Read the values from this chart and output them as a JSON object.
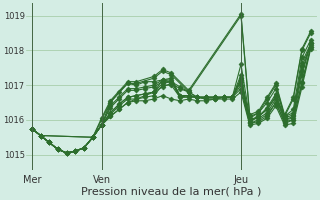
{
  "bg_color": "#d4ede4",
  "line_color": "#2d6e2d",
  "grid_color": "#a0c8a0",
  "xlabel": "Pression niveau de la mer( hPa )",
  "xlabel_fontsize": 8,
  "ylabel_ticks": [
    1015,
    1016,
    1017,
    1018,
    1019
  ],
  "ylim": [
    1014.55,
    1019.35
  ],
  "day_labels": [
    "Mer",
    "Ven",
    "Jeu"
  ],
  "day_positions": [
    0,
    48,
    144
  ],
  "xlim": [
    -4,
    196
  ],
  "vline_positions": [
    0,
    48,
    144
  ],
  "series": [
    [
      0,
      1015.75,
      6,
      1015.55,
      12,
      1015.35,
      18,
      1015.15,
      24,
      1015.05,
      30,
      1015.1,
      36,
      1015.2,
      42,
      1015.5,
      48,
      1015.85,
      54,
      1016.1,
      60,
      1016.3,
      66,
      1016.5,
      72,
      1016.6,
      78,
      1016.7,
      84,
      1016.8,
      90,
      1016.95,
      96,
      1017.05,
      102,
      1016.9,
      108,
      1016.8,
      114,
      1016.65,
      120,
      1016.6,
      126,
      1016.6,
      132,
      1016.65,
      138,
      1016.65,
      144,
      1016.9,
      150,
      1015.9,
      156,
      1015.95,
      162,
      1016.1,
      168,
      1016.5,
      174,
      1015.95,
      180,
      1016.0,
      186,
      1017.05,
      192,
      1018.1
    ],
    [
      0,
      1015.75,
      6,
      1015.55,
      12,
      1015.35,
      18,
      1015.15,
      24,
      1015.05,
      30,
      1015.1,
      36,
      1015.2,
      42,
      1015.5,
      48,
      1015.85,
      54,
      1016.2,
      60,
      1016.45,
      66,
      1016.65,
      72,
      1016.7,
      78,
      1016.75,
      84,
      1016.8,
      90,
      1017.05,
      96,
      1017.1,
      102,
      1016.95,
      108,
      1016.8,
      114,
      1016.65,
      120,
      1016.6,
      126,
      1016.6,
      132,
      1016.65,
      138,
      1016.65,
      144,
      1017.15,
      150,
      1016.0,
      156,
      1016.1,
      162,
      1016.3,
      168,
      1016.65,
      174,
      1016.1,
      180,
      1016.2,
      186,
      1017.4,
      192,
      1018.2
    ],
    [
      0,
      1015.75,
      6,
      1015.55,
      12,
      1015.35,
      18,
      1015.15,
      24,
      1015.05,
      30,
      1015.1,
      36,
      1015.2,
      42,
      1015.5,
      48,
      1015.85,
      54,
      1016.1,
      60,
      1016.3,
      66,
      1016.5,
      72,
      1016.55,
      78,
      1016.55,
      84,
      1016.6,
      90,
      1016.7,
      96,
      1016.6,
      102,
      1016.55,
      108,
      1016.6,
      114,
      1016.55,
      120,
      1016.55,
      126,
      1016.6,
      132,
      1016.6,
      138,
      1016.6,
      144,
      1016.8,
      150,
      1015.85,
      156,
      1015.9,
      162,
      1016.05,
      168,
      1016.4,
      174,
      1015.85,
      180,
      1015.9,
      186,
      1016.95,
      192,
      1018.05
    ],
    [
      0,
      1015.75,
      6,
      1015.55,
      12,
      1015.35,
      18,
      1015.15,
      24,
      1015.05,
      30,
      1015.1,
      36,
      1015.2,
      42,
      1015.5,
      48,
      1015.85,
      54,
      1016.15,
      60,
      1016.4,
      66,
      1016.6,
      72,
      1016.6,
      78,
      1016.65,
      84,
      1016.7,
      90,
      1017.0,
      96,
      1017.0,
      102,
      1016.65,
      108,
      1016.65,
      114,
      1016.65,
      120,
      1016.65,
      126,
      1016.65,
      132,
      1016.65,
      138,
      1016.65,
      144,
      1017.0,
      150,
      1015.9,
      156,
      1016.0,
      162,
      1016.15,
      168,
      1016.5,
      174,
      1015.9,
      180,
      1016.0,
      186,
      1017.1,
      192,
      1018.1
    ],
    [
      0,
      1015.75,
      6,
      1015.55,
      12,
      1015.35,
      18,
      1015.15,
      24,
      1015.05,
      30,
      1015.1,
      36,
      1015.2,
      42,
      1015.5,
      48,
      1015.85,
      54,
      1016.2,
      60,
      1016.45,
      66,
      1016.65,
      72,
      1016.7,
      78,
      1016.75,
      84,
      1016.8,
      90,
      1017.15,
      96,
      1017.1,
      102,
      1016.7,
      108,
      1016.7,
      114,
      1016.65,
      120,
      1016.65,
      126,
      1016.65,
      132,
      1016.65,
      138,
      1016.65,
      144,
      1017.2,
      150,
      1016.0,
      156,
      1016.05,
      162,
      1016.2,
      168,
      1016.6,
      174,
      1016.0,
      180,
      1016.05,
      186,
      1017.3,
      192,
      1018.2
    ],
    [
      0,
      1015.75,
      6,
      1015.55,
      12,
      1015.35,
      18,
      1015.15,
      24,
      1015.05,
      30,
      1015.1,
      36,
      1015.2,
      42,
      1015.5,
      48,
      1015.85,
      54,
      1016.5,
      60,
      1016.8,
      66,
      1017.05,
      72,
      1017.0,
      78,
      1017.1,
      84,
      1017.1,
      90,
      1017.15,
      96,
      1017.2,
      102,
      1016.7,
      108,
      1016.7,
      114,
      1016.65,
      120,
      1016.65,
      126,
      1016.65,
      132,
      1016.65,
      138,
      1016.65,
      144,
      1017.6,
      150,
      1016.05,
      156,
      1016.2,
      162,
      1016.5,
      168,
      1016.9,
      174,
      1016.1,
      180,
      1016.3,
      186,
      1017.8,
      192,
      1018.3
    ],
    [
      0,
      1015.75,
      6,
      1015.55,
      12,
      1015.35,
      18,
      1015.15,
      24,
      1015.05,
      30,
      1015.1,
      36,
      1015.2,
      42,
      1015.5,
      48,
      1015.85,
      54,
      1016.35,
      60,
      1016.6,
      66,
      1016.85,
      72,
      1016.85,
      78,
      1016.9,
      84,
      1016.95,
      90,
      1017.1,
      96,
      1017.1,
      102,
      1016.65,
      108,
      1016.7,
      114,
      1016.65,
      120,
      1016.65,
      126,
      1016.65,
      132,
      1016.65,
      138,
      1016.65,
      144,
      1017.1,
      150,
      1015.95,
      156,
      1016.1,
      162,
      1016.3,
      168,
      1016.7,
      174,
      1016.0,
      180,
      1016.1,
      186,
      1017.55,
      192,
      1018.15
    ],
    [
      0,
      1015.75,
      6,
      1015.55,
      12,
      1015.35,
      18,
      1015.15,
      24,
      1015.05,
      30,
      1015.1,
      36,
      1015.2,
      42,
      1015.5,
      48,
      1015.85,
      54,
      1016.4,
      60,
      1016.65,
      66,
      1016.9,
      72,
      1016.9,
      78,
      1016.95,
      84,
      1017.0,
      90,
      1017.15,
      96,
      1017.15,
      102,
      1016.7,
      108,
      1016.7,
      114,
      1016.65,
      120,
      1016.65,
      126,
      1016.65,
      132,
      1016.65,
      138,
      1016.65,
      144,
      1017.3,
      150,
      1015.95,
      156,
      1016.1,
      162,
      1016.35,
      168,
      1016.75,
      174,
      1016.05,
      180,
      1016.15,
      186,
      1017.65,
      192,
      1018.2
    ],
    [
      0,
      1015.75,
      6,
      1015.55,
      42,
      1015.5,
      48,
      1016.0,
      54,
      1016.5,
      66,
      1017.05,
      72,
      1017.05,
      84,
      1017.2,
      90,
      1017.4,
      96,
      1017.3,
      108,
      1016.8,
      144,
      1019.0,
      150,
      1016.1,
      156,
      1016.2,
      162,
      1016.6,
      168,
      1017.0,
      174,
      1016.1,
      180,
      1016.6,
      186,
      1018.0,
      192,
      1018.5
    ],
    [
      0,
      1015.75,
      6,
      1015.55,
      42,
      1015.5,
      48,
      1016.05,
      54,
      1016.55,
      66,
      1017.1,
      72,
      1017.1,
      84,
      1017.25,
      90,
      1017.45,
      96,
      1017.35,
      108,
      1016.85,
      144,
      1019.05,
      150,
      1016.15,
      156,
      1016.25,
      162,
      1016.65,
      168,
      1017.05,
      174,
      1016.15,
      180,
      1016.65,
      186,
      1018.05,
      192,
      1018.55
    ]
  ],
  "marker": "D",
  "markersize": 2.5,
  "linewidth": 0.8
}
